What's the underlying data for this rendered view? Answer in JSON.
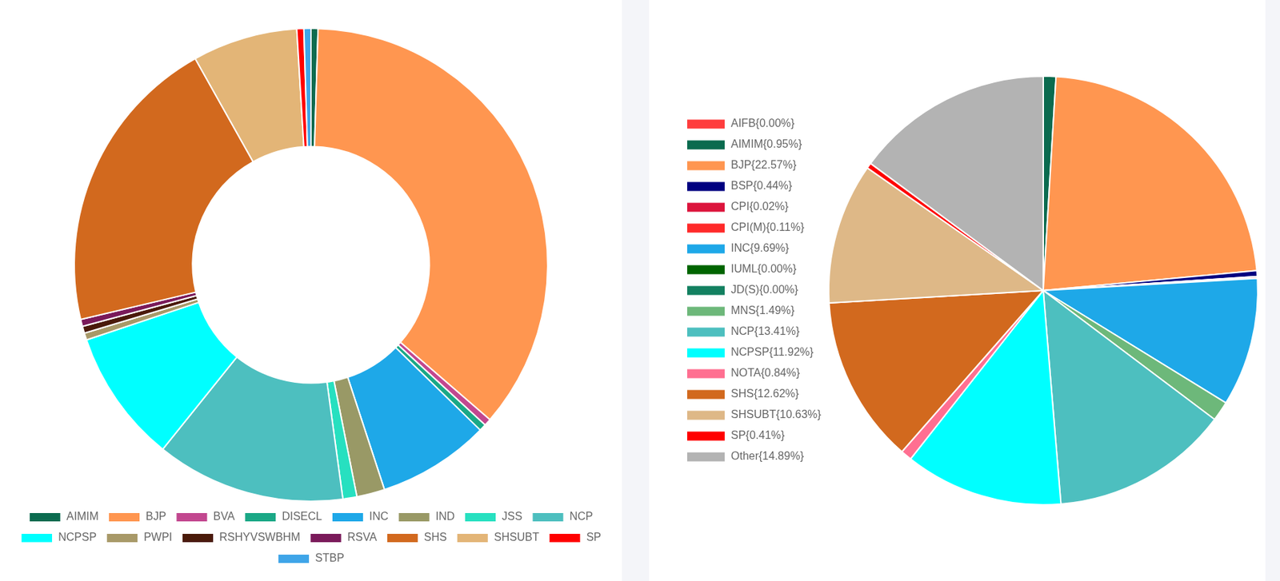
{
  "chart_data": [
    {
      "type": "doughnut",
      "categories": [
        "AIMIM",
        "BJP",
        "BVA",
        "DISECL",
        "INC",
        "IND",
        "JSS",
        "NCP",
        "NCPSP",
        "PWPI",
        "RSHYVSWBHM",
        "RSVA",
        "SHS",
        "SHSUBT",
        "SP",
        "STBP"
      ],
      "values": [
        1,
        75,
        1,
        1,
        16,
        4,
        2,
        27,
        19,
        1,
        1,
        1,
        43,
        15,
        1,
        1
      ],
      "colors": [
        "#0b6b4f",
        "#ff9650",
        "#c2478f",
        "#1aa886",
        "#1ea8e8",
        "#999966",
        "#27e0c0",
        "#4dbfbf",
        "#00ffff",
        "#a89968",
        "#4a1a0a",
        "#7a1a5a",
        "#d2691e",
        "#e3b577",
        "#ff0000",
        "#3fa5e8"
      ],
      "legend": "bottom"
    },
    {
      "type": "pie",
      "categories": [
        "AIFB{0.00%}",
        "AIMIM{0.95%}",
        "BJP{22.57%}",
        "BSP{0.44%}",
        "CPI{0.02%}",
        "CPI(M){0.11%}",
        "INC{9.69%}",
        "IUML{0.00%}",
        "JD(S){0.00%}",
        "MNS{1.49%}",
        "NCP{13.41%}",
        "NCPSP{11.92%}",
        "NOTA{0.84%}",
        "SHS{12.62%}",
        "SHSUBT{10.63%}",
        "SP{0.41%}",
        "Other{14.89%}"
      ],
      "values": [
        0.0,
        0.95,
        22.57,
        0.44,
        0.02,
        0.11,
        9.69,
        0.0,
        0.0,
        1.49,
        13.41,
        11.92,
        0.84,
        12.62,
        10.63,
        0.41,
        14.89
      ],
      "colors": [
        "#ff3d3d",
        "#0b6b4f",
        "#ff9650",
        "#000080",
        "#dc143c",
        "#ff2a2a",
        "#1ea8e8",
        "#006400",
        "#138060",
        "#6db87a",
        "#4dbfbf",
        "#00ffff",
        "#ff6f91",
        "#d2691e",
        "#deb887",
        "#ff0000",
        "#b3b3b3"
      ],
      "legend": "left"
    }
  ]
}
